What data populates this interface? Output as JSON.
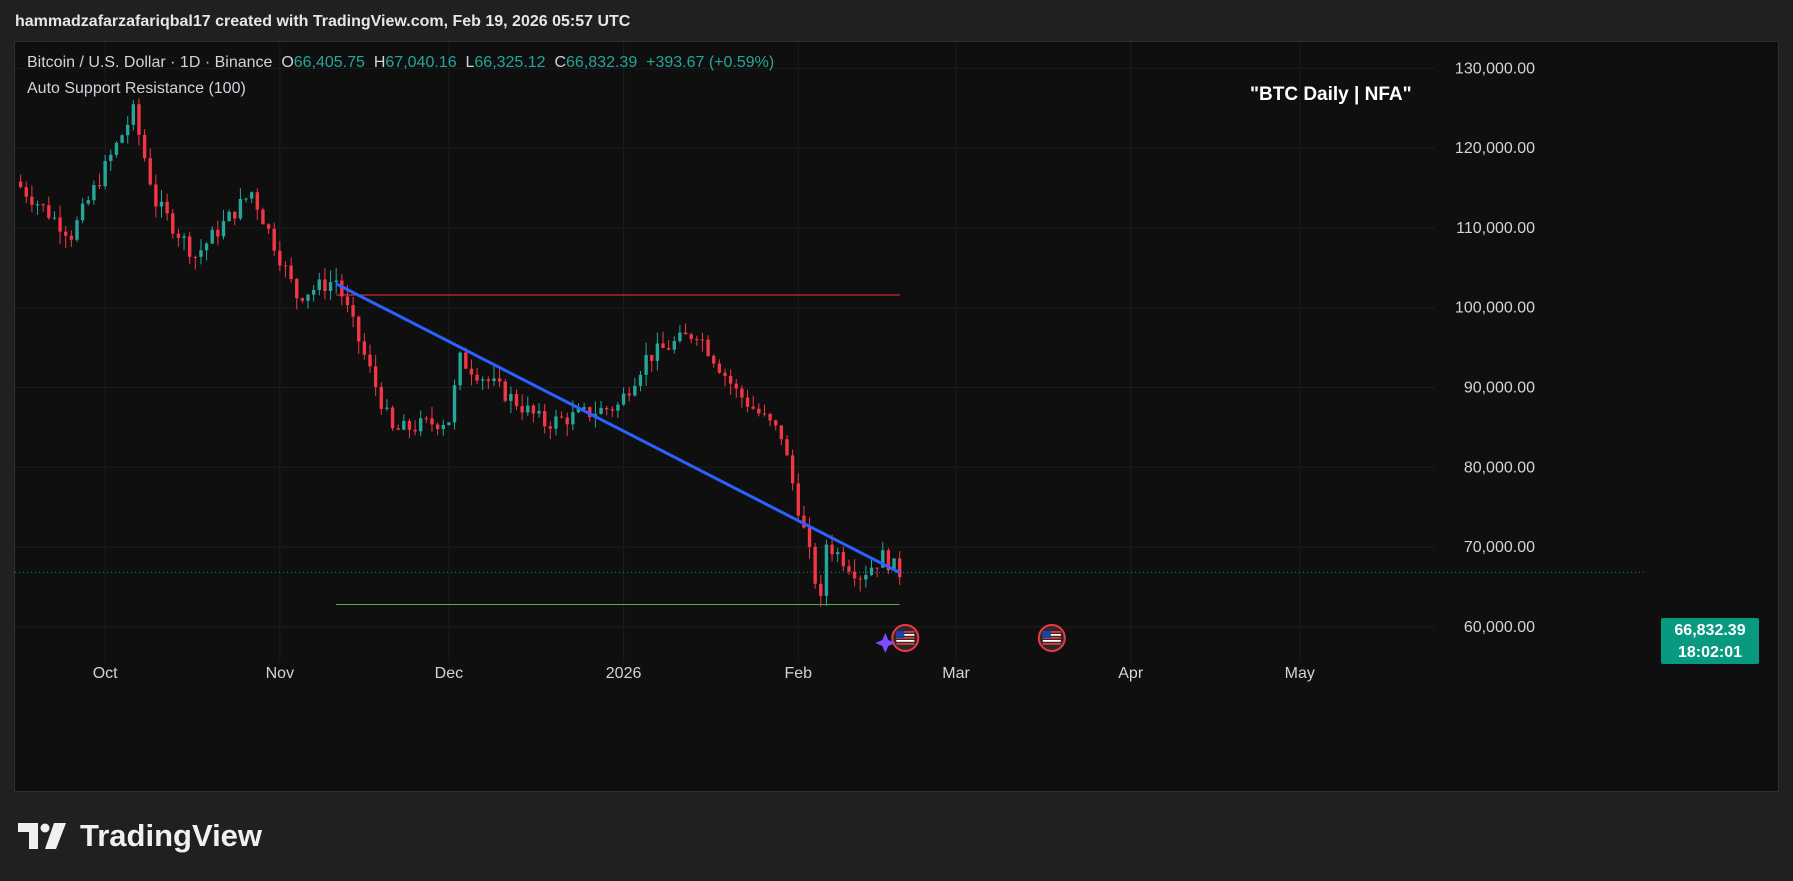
{
  "header": {
    "snapshot_line": "hammadzafarzafariqbal17 created with TradingView.com, Feb 19, 2026 05:57 UTC"
  },
  "legend": {
    "symbol": "Bitcoin / U.S. Dollar · 1D · Binance",
    "o_label": "O",
    "o_value": "66,405.75",
    "h_label": "H",
    "h_value": "67,040.16",
    "l_label": "L",
    "l_value": "66,325.12",
    "c_label": "C",
    "c_value": "66,832.39",
    "change": "+393.67 (+0.59%)",
    "indicator": "Auto Support Resistance (100)"
  },
  "annotation": "\"BTC Daily | NFA\"",
  "price_tag": {
    "price": "66,832.39",
    "countdown": "18:02:01"
  },
  "footer": {
    "brand": "TradingView"
  },
  "colors": {
    "up": "#26a69a",
    "down": "#f23645",
    "trendline": "#2962ff",
    "resistance": "#f23645",
    "support": "#4caf50",
    "price_line": "#089981"
  },
  "icons": [
    "us-flag-event-icon",
    "us-flag-event-icon",
    "sparkle-icon",
    "tradingview-logo-icon"
  ],
  "chart_data": {
    "type": "candlestick",
    "title": "",
    "x_axis_ticks": [
      "Oct",
      "Nov",
      "Dec",
      "2026",
      "Feb",
      "Mar",
      "Apr",
      "May"
    ],
    "y_axis_ticks": [
      "130,000.00",
      "120,000.00",
      "110,000.00",
      "100,000.00",
      "90,000.00",
      "80,000.00",
      "70,000.00",
      "60,000.00"
    ],
    "y_tick_values": [
      130000,
      120000,
      110000,
      100000,
      90000,
      80000,
      70000,
      60000
    ],
    "ylim": [
      55600,
      133300
    ],
    "x_tick_dates": [
      "2025-10-01",
      "2025-11-01",
      "2025-12-01",
      "2026-01-01",
      "2026-02-01",
      "2026-03-01",
      "2026-04-01",
      "2026-05-01"
    ],
    "xlim": [
      "2025-09-15",
      "2026-05-25"
    ],
    "last_price": 66832.39,
    "key_closes": [
      {
        "date": "2025-09-15",
        "close": 115800
      },
      {
        "date": "2025-09-25",
        "close": 109200
      },
      {
        "date": "2025-10-06",
        "close": 124500
      },
      {
        "date": "2025-10-10",
        "close": 113200
      },
      {
        "date": "2025-10-17",
        "close": 106500
      },
      {
        "date": "2025-10-27",
        "close": 114500
      },
      {
        "date": "2025-11-04",
        "close": 101500
      },
      {
        "date": "2025-11-11",
        "close": 103500
      },
      {
        "date": "2025-11-21",
        "close": 84500
      },
      {
        "date": "2025-12-01",
        "close": 86000
      },
      {
        "date": "2025-12-03",
        "close": 93500
      },
      {
        "date": "2025-12-18",
        "close": 85500
      },
      {
        "date": "2025-12-31",
        "close": 87700
      },
      {
        "date": "2026-01-05",
        "close": 93700
      },
      {
        "date": "2026-01-14",
        "close": 97000
      },
      {
        "date": "2026-01-21",
        "close": 89500
      },
      {
        "date": "2026-01-29",
        "close": 84000
      },
      {
        "date": "2026-02-05",
        "close": 63000
      },
      {
        "date": "2026-02-06",
        "close": 70500
      },
      {
        "date": "2026-02-12",
        "close": 66500
      },
      {
        "date": "2026-02-16",
        "close": 68800
      },
      {
        "date": "2026-02-19",
        "close": 66832.39
      }
    ],
    "trendline": {
      "from": {
        "date": "2025-11-11",
        "price": 103000
      },
      "to": {
        "date": "2026-02-19",
        "price": 66800
      }
    },
    "resistance": {
      "price": 101600,
      "from": "2025-11-11",
      "to": "2026-02-19"
    },
    "support": {
      "price": 62800,
      "from": "2025-11-11",
      "to": "2026-02-19"
    },
    "events": [
      {
        "date": "2026-02-20",
        "icon": "us-flag-event-icon"
      },
      {
        "date": "2026-03-18",
        "icon": "us-flag-event-icon"
      }
    ],
    "grid": true,
    "legend_position": "top-left"
  }
}
